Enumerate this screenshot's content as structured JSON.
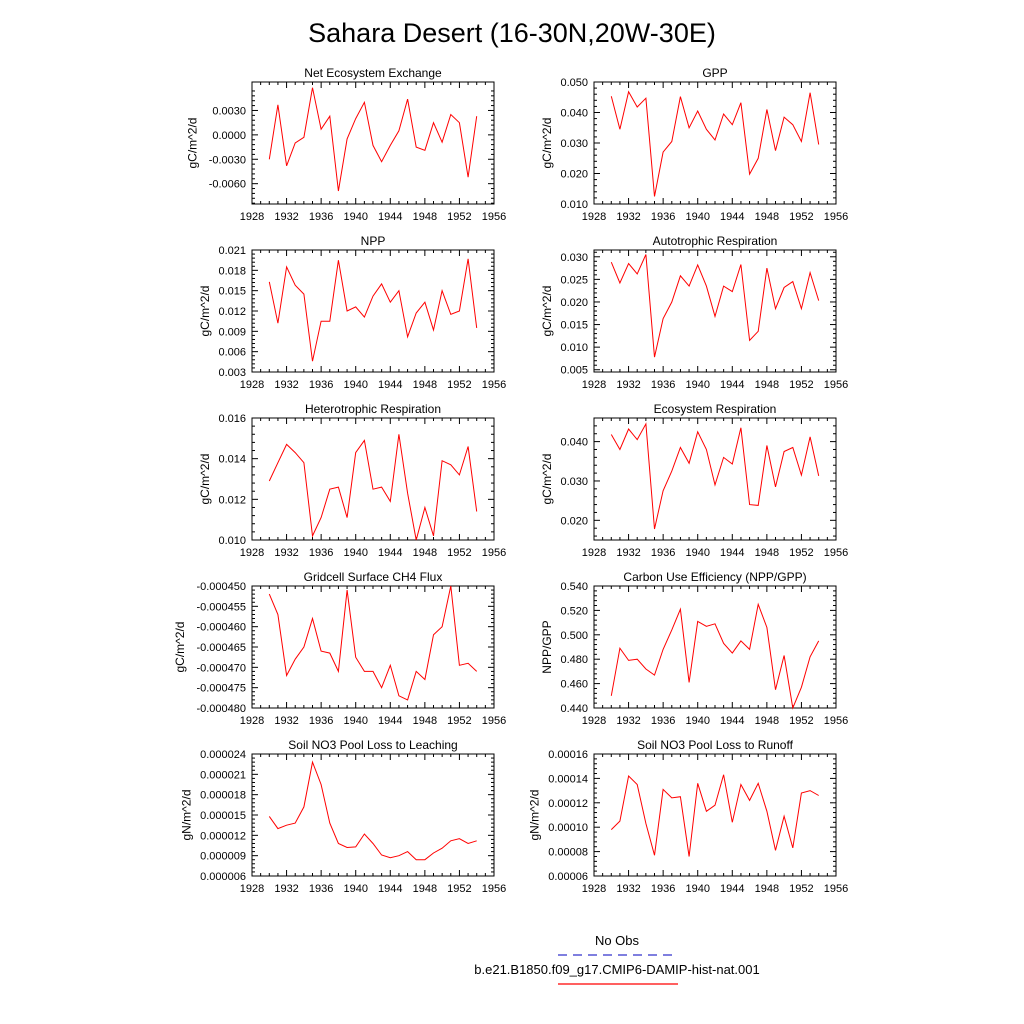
{
  "title": "Sahara Desert (16-30N,20W-30E)",
  "legend": [
    {
      "label": "No Obs",
      "color": "#3333cc",
      "dash": true
    },
    {
      "label": "b.e21.B1850.f09_g17.CMIP6-DAMIP-hist-nat.001",
      "color": "#ff0000",
      "dash": false
    }
  ],
  "series_color": "#ff0000",
  "chart_data": [
    {
      "type": "line",
      "title": "Net Ecosystem Exchange",
      "ylabel": "gC/m^2/d",
      "xlim": [
        1928,
        1956
      ],
      "xticks": [
        1928,
        1932,
        1936,
        1940,
        1944,
        1948,
        1952,
        1956
      ],
      "xtick_labels": [
        "1928",
        "1932",
        "1936",
        "1940",
        "1944",
        "1948",
        "1952",
        "1956"
      ],
      "ylim": [
        -0.0085,
        0.0065
      ],
      "yticks": [
        -0.006,
        -0.003,
        0.0,
        0.003
      ],
      "ytick_labels": [
        "-0.0060",
        "-0.0030",
        "0.0000",
        "0.0030"
      ],
      "x": [
        1930,
        1931,
        1932,
        1933,
        1934,
        1935,
        1936,
        1937,
        1938,
        1939,
        1940,
        1941,
        1942,
        1943,
        1944,
        1945,
        1946,
        1947,
        1948,
        1949,
        1950,
        1951,
        1952,
        1953,
        1954
      ],
      "y": [
        -0.003,
        0.0037,
        -0.0038,
        -0.001,
        -0.0003,
        0.0058,
        0.0007,
        0.0023,
        -0.0069,
        -0.0005,
        0.002,
        0.004,
        -0.0013,
        -0.0033,
        -0.0013,
        0.0005,
        0.0044,
        -0.0015,
        -0.0019,
        0.0015,
        -0.0009,
        0.0025,
        0.0015,
        -0.0052,
        0.0023
      ]
    },
    {
      "type": "line",
      "title": "GPP",
      "ylabel": "gC/m^2/d",
      "xlim": [
        1928,
        1956
      ],
      "xticks": [
        1928,
        1932,
        1936,
        1940,
        1944,
        1948,
        1952,
        1956
      ],
      "xtick_labels": [
        "1928",
        "1932",
        "1936",
        "1940",
        "1944",
        "1948",
        "1952",
        "1956"
      ],
      "ylim": [
        0.01,
        0.05
      ],
      "yticks": [
        0.01,
        0.02,
        0.03,
        0.04,
        0.05
      ],
      "ytick_labels": [
        "0.010",
        "0.020",
        "0.030",
        "0.040",
        "0.050"
      ],
      "x": [
        1930,
        1931,
        1932,
        1933,
        1934,
        1935,
        1936,
        1937,
        1938,
        1939,
        1940,
        1941,
        1942,
        1943,
        1944,
        1945,
        1946,
        1947,
        1948,
        1949,
        1950,
        1951,
        1952,
        1953,
        1954
      ],
      "y": [
        0.0453,
        0.0345,
        0.0468,
        0.0418,
        0.0447,
        0.0125,
        0.027,
        0.0305,
        0.0452,
        0.035,
        0.0405,
        0.0345,
        0.031,
        0.0395,
        0.036,
        0.0432,
        0.0198,
        0.025,
        0.041,
        0.0275,
        0.0385,
        0.036,
        0.0305,
        0.0465,
        0.0295
      ]
    },
    {
      "type": "line",
      "title": "NPP",
      "ylabel": "gC/m^2/d",
      "xlim": [
        1928,
        1956
      ],
      "xticks": [
        1928,
        1932,
        1936,
        1940,
        1944,
        1948,
        1952,
        1956
      ],
      "xtick_labels": [
        "1928",
        "1932",
        "1936",
        "1940",
        "1944",
        "1948",
        "1952",
        "1956"
      ],
      "ylim": [
        0.003,
        0.021
      ],
      "yticks": [
        0.003,
        0.006,
        0.009,
        0.012,
        0.015,
        0.018,
        0.021
      ],
      "ytick_labels": [
        "0.003",
        "0.006",
        "0.009",
        "0.012",
        "0.015",
        "0.018",
        "0.021"
      ],
      "x": [
        1930,
        1931,
        1932,
        1933,
        1934,
        1935,
        1936,
        1937,
        1938,
        1939,
        1940,
        1941,
        1942,
        1943,
        1944,
        1945,
        1946,
        1947,
        1948,
        1949,
        1950,
        1951,
        1952,
        1953,
        1954
      ],
      "y": [
        0.0163,
        0.0102,
        0.0185,
        0.0158,
        0.0145,
        0.0046,
        0.0105,
        0.0105,
        0.0195,
        0.012,
        0.0126,
        0.0111,
        0.0142,
        0.016,
        0.0133,
        0.015,
        0.0082,
        0.0117,
        0.0133,
        0.0092,
        0.015,
        0.0115,
        0.012,
        0.0197,
        0.0095
      ]
    },
    {
      "type": "line",
      "title": "Autotrophic Respiration",
      "ylabel": "gC/m^2/d",
      "xlim": [
        1928,
        1956
      ],
      "xticks": [
        1928,
        1932,
        1936,
        1940,
        1944,
        1948,
        1952,
        1956
      ],
      "xtick_labels": [
        "1928",
        "1932",
        "1936",
        "1940",
        "1944",
        "1948",
        "1952",
        "1956"
      ],
      "ylim": [
        0.0045,
        0.0315
      ],
      "yticks": [
        0.005,
        0.01,
        0.015,
        0.02,
        0.025,
        0.03
      ],
      "ytick_labels": [
        "0.005",
        "0.010",
        "0.015",
        "0.020",
        "0.025",
        "0.030"
      ],
      "x": [
        1930,
        1931,
        1932,
        1933,
        1934,
        1935,
        1936,
        1937,
        1938,
        1939,
        1940,
        1941,
        1942,
        1943,
        1944,
        1945,
        1946,
        1947,
        1948,
        1949,
        1950,
        1951,
        1952,
        1953,
        1954
      ],
      "y": [
        0.0288,
        0.0242,
        0.0285,
        0.0262,
        0.0305,
        0.0078,
        0.0163,
        0.02,
        0.0258,
        0.0235,
        0.0282,
        0.0235,
        0.0168,
        0.0235,
        0.0223,
        0.0283,
        0.0115,
        0.0135,
        0.0275,
        0.0185,
        0.0232,
        0.0245,
        0.0185,
        0.0265,
        0.0203
      ]
    },
    {
      "type": "line",
      "title": "Heterotrophic Respiration",
      "ylabel": "gC/m^2/d",
      "xlim": [
        1928,
        1956
      ],
      "xticks": [
        1928,
        1932,
        1936,
        1940,
        1944,
        1948,
        1952,
        1956
      ],
      "xtick_labels": [
        "1928",
        "1932",
        "1936",
        "1940",
        "1944",
        "1948",
        "1952",
        "1956"
      ],
      "ylim": [
        0.01,
        0.016
      ],
      "yticks": [
        0.01,
        0.012,
        0.014,
        0.016
      ],
      "ytick_labels": [
        "0.010",
        "0.012",
        "0.014",
        "0.016"
      ],
      "x": [
        1930,
        1931,
        1932,
        1933,
        1934,
        1935,
        1936,
        1937,
        1938,
        1939,
        1940,
        1941,
        1942,
        1943,
        1944,
        1945,
        1946,
        1947,
        1948,
        1949,
        1950,
        1951,
        1952,
        1953,
        1954
      ],
      "y": [
        0.0129,
        0.0138,
        0.0147,
        0.0143,
        0.0138,
        0.0102,
        0.0111,
        0.0125,
        0.0126,
        0.0111,
        0.0143,
        0.0149,
        0.0125,
        0.0126,
        0.0119,
        0.0152,
        0.0123,
        0.01,
        0.0116,
        0.0102,
        0.0139,
        0.0137,
        0.0132,
        0.0146,
        0.0114
      ]
    },
    {
      "type": "line",
      "title": "Ecosystem Respiration",
      "ylabel": "gC/m^2/d",
      "xlim": [
        1928,
        1956
      ],
      "xticks": [
        1928,
        1932,
        1936,
        1940,
        1944,
        1948,
        1952,
        1956
      ],
      "xtick_labels": [
        "1928",
        "1932",
        "1936",
        "1940",
        "1944",
        "1948",
        "1952",
        "1956"
      ],
      "ylim": [
        0.015,
        0.046
      ],
      "yticks": [
        0.02,
        0.03,
        0.04
      ],
      "ytick_labels": [
        "0.020",
        "0.030",
        "0.040"
      ],
      "x": [
        1930,
        1931,
        1932,
        1933,
        1934,
        1935,
        1936,
        1937,
        1938,
        1939,
        1940,
        1941,
        1942,
        1943,
        1944,
        1945,
        1946,
        1947,
        1948,
        1949,
        1950,
        1951,
        1952,
        1953,
        1954
      ],
      "y": [
        0.0418,
        0.038,
        0.0432,
        0.0405,
        0.0445,
        0.0178,
        0.0275,
        0.0325,
        0.0385,
        0.0345,
        0.0425,
        0.038,
        0.029,
        0.036,
        0.0343,
        0.0435,
        0.024,
        0.0238,
        0.039,
        0.0285,
        0.0375,
        0.0385,
        0.0315,
        0.0412,
        0.0313
      ]
    },
    {
      "type": "line",
      "title": "Gridcell Surface CH4 Flux",
      "ylabel": "gC/m^2/d",
      "xlim": [
        1928,
        1956
      ],
      "xticks": [
        1928,
        1932,
        1936,
        1940,
        1944,
        1948,
        1952,
        1956
      ],
      "xtick_labels": [
        "1928",
        "1932",
        "1936",
        "1940",
        "1944",
        "1948",
        "1952",
        "1956"
      ],
      "ylim": [
        -0.00048,
        -0.00045
      ],
      "yticks": [
        -0.00048,
        -0.000475,
        -0.00047,
        -0.000465,
        -0.00046,
        -0.000455,
        -0.00045
      ],
      "ytick_labels": [
        "-0.000480",
        "-0.000475",
        "-0.000470",
        "-0.000465",
        "-0.000460",
        "-0.000455",
        "-0.000450"
      ],
      "x": [
        1930,
        1931,
        1932,
        1933,
        1934,
        1935,
        1936,
        1937,
        1938,
        1939,
        1940,
        1941,
        1942,
        1943,
        1944,
        1945,
        1946,
        1947,
        1948,
        1949,
        1950,
        1951,
        1952,
        1953,
        1954
      ],
      "y": [
        -0.000452,
        -0.000457,
        -0.000472,
        -0.000468,
        -0.000465,
        -0.000458,
        -0.000466,
        -0.0004665,
        -0.000471,
        -0.000451,
        -0.0004675,
        -0.000471,
        -0.000471,
        -0.000475,
        -0.0004695,
        -0.000477,
        -0.000478,
        -0.000471,
        -0.000473,
        -0.000462,
        -0.00046,
        -0.00045,
        -0.0004695,
        -0.000469,
        -0.000471
      ]
    },
    {
      "type": "line",
      "title": "Carbon Use Efficiency (NPP/GPP)",
      "ylabel": "NPP/GPP",
      "xlim": [
        1928,
        1956
      ],
      "xticks": [
        1928,
        1932,
        1936,
        1940,
        1944,
        1948,
        1952,
        1956
      ],
      "xtick_labels": [
        "1928",
        "1932",
        "1936",
        "1940",
        "1944",
        "1948",
        "1952",
        "1956"
      ],
      "ylim": [
        0.44,
        0.54
      ],
      "yticks": [
        0.44,
        0.46,
        0.48,
        0.5,
        0.52,
        0.54
      ],
      "ytick_labels": [
        "0.440",
        "0.460",
        "0.480",
        "0.500",
        "0.520",
        "0.540"
      ],
      "x": [
        1930,
        1931,
        1932,
        1933,
        1934,
        1935,
        1936,
        1937,
        1938,
        1939,
        1940,
        1941,
        1942,
        1943,
        1944,
        1945,
        1946,
        1947,
        1948,
        1949,
        1950,
        1951,
        1952,
        1953,
        1954
      ],
      "y": [
        0.45,
        0.489,
        0.479,
        0.48,
        0.472,
        0.467,
        0.488,
        0.504,
        0.521,
        0.461,
        0.511,
        0.507,
        0.509,
        0.493,
        0.485,
        0.495,
        0.488,
        0.525,
        0.506,
        0.455,
        0.483,
        0.44,
        0.457,
        0.482,
        0.495
      ]
    },
    {
      "type": "line",
      "title": "Soil NO3 Pool Loss to Leaching",
      "ylabel": "gN/m^2/d",
      "xlim": [
        1928,
        1956
      ],
      "xticks": [
        1928,
        1932,
        1936,
        1940,
        1944,
        1948,
        1952,
        1956
      ],
      "xtick_labels": [
        "1928",
        "1932",
        "1936",
        "1940",
        "1944",
        "1948",
        "1952",
        "1956"
      ],
      "ylim": [
        6e-06,
        2.4e-05
      ],
      "yticks": [
        6e-06,
        9e-06,
        1.2e-05,
        1.5e-05,
        1.8e-05,
        2.1e-05,
        2.4e-05
      ],
      "ytick_labels": [
        "0.000006",
        "0.000009",
        "0.000012",
        "0.000015",
        "0.000018",
        "0.000021",
        "0.000024"
      ],
      "x": [
        1930,
        1931,
        1932,
        1933,
        1934,
        1935,
        1936,
        1937,
        1938,
        1939,
        1940,
        1941,
        1942,
        1943,
        1944,
        1945,
        1946,
        1947,
        1948,
        1949,
        1950,
        1951,
        1952,
        1953,
        1954
      ],
      "y": [
        1.48e-05,
        1.3e-05,
        1.35e-05,
        1.38e-05,
        1.62e-05,
        2.28e-05,
        1.95e-05,
        1.38e-05,
        1.08e-05,
        1.02e-05,
        1.03e-05,
        1.22e-05,
        1.08e-05,
        9.1e-06,
        8.7e-06,
        9e-06,
        9.6e-06,
        8.4e-06,
        8.4e-06,
        9.4e-06,
        1.01e-05,
        1.12e-05,
        1.15e-05,
        1.08e-05,
        1.12e-05
      ]
    },
    {
      "type": "line",
      "title": "Soil NO3 Pool Loss to Runoff",
      "ylabel": "gN/m^2/d",
      "xlim": [
        1928,
        1956
      ],
      "xticks": [
        1928,
        1932,
        1936,
        1940,
        1944,
        1948,
        1952,
        1956
      ],
      "xtick_labels": [
        "1928",
        "1932",
        "1936",
        "1940",
        "1944",
        "1948",
        "1952",
        "1956"
      ],
      "ylim": [
        6e-05,
        0.00016
      ],
      "yticks": [
        6e-05,
        8e-05,
        0.0001,
        0.00012,
        0.00014,
        0.00016
      ],
      "ytick_labels": [
        "0.00006",
        "0.00008",
        "0.00010",
        "0.00012",
        "0.00014",
        "0.00016"
      ],
      "x": [
        1930,
        1931,
        1932,
        1933,
        1934,
        1935,
        1936,
        1937,
        1938,
        1939,
        1940,
        1941,
        1942,
        1943,
        1944,
        1945,
        1946,
        1947,
        1948,
        1949,
        1950,
        1951,
        1952,
        1953,
        1954
      ],
      "y": [
        9.8e-05,
        0.000105,
        0.000142,
        0.000135,
        0.000103,
        7.7e-05,
        0.000131,
        0.000124,
        0.000125,
        7.6e-05,
        0.000136,
        0.000113,
        0.000118,
        0.000143,
        0.000104,
        0.000135,
        0.000122,
        0.000136,
        0.000113,
        8.1e-05,
        0.000109,
        8.3e-05,
        0.000128,
        0.00013,
        0.000126
      ]
    }
  ]
}
